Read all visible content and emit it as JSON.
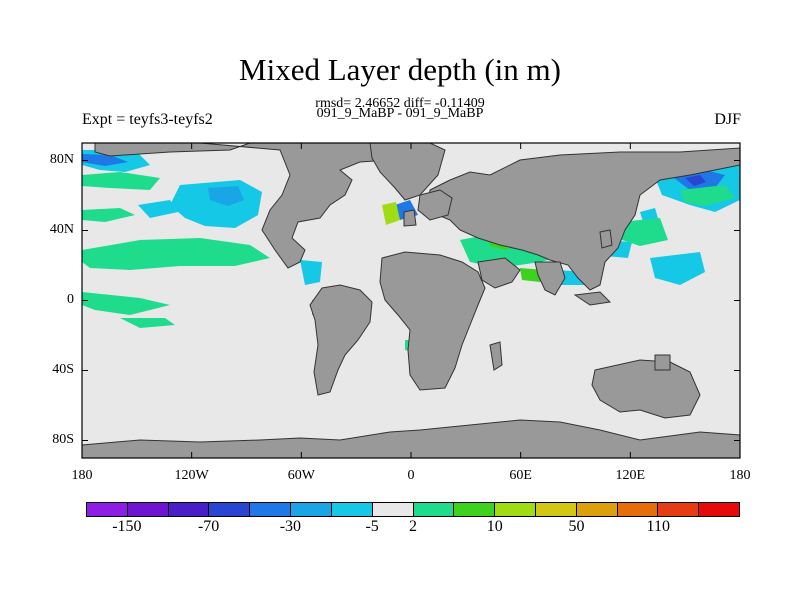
{
  "title": "Mixed Layer depth (in m)",
  "stats": "rmsd= 2.46652 diff= -0.11409",
  "subtitle": "091_9_MaBP - 091_9_MaBP",
  "left_label": "Expt = teyfs3-teyfs2",
  "right_label": "DJF",
  "lat_ticks": [
    {
      "label": "80N",
      "value": 80
    },
    {
      "label": "40N",
      "value": 40
    },
    {
      "label": "0",
      "value": 0
    },
    {
      "label": "40S",
      "value": -40
    },
    {
      "label": "80S",
      "value": -80
    }
  ],
  "lon_ticks": [
    {
      "label": "180",
      "value": -180
    },
    {
      "label": "120W",
      "value": -120
    },
    {
      "label": "60W",
      "value": -60
    },
    {
      "label": "0",
      "value": 0
    },
    {
      "label": "60E",
      "value": 60
    },
    {
      "label": "120E",
      "value": 120
    },
    {
      "label": "180",
      "value": 180
    }
  ],
  "colorbar": {
    "colors": [
      "#8c1ee6",
      "#6e14d2",
      "#4a1ec8",
      "#2846d2",
      "#1e78e6",
      "#19a5e6",
      "#14c8e6",
      "#e8e8e8",
      "#1edc8c",
      "#3cd21e",
      "#a0dc14",
      "#d2c814",
      "#dca00a",
      "#e66e0a",
      "#e63c14",
      "#e60a0a"
    ],
    "labels": [
      {
        "text": "-150",
        "index": 1
      },
      {
        "text": "-70",
        "index": 3
      },
      {
        "text": "-30",
        "index": 5
      },
      {
        "text": "-5",
        "index": 7
      },
      {
        "text": "2",
        "index": 8
      },
      {
        "text": "10",
        "index": 10
      },
      {
        "text": "50",
        "index": 12
      },
      {
        "text": "110",
        "index": 14
      }
    ]
  },
  "colors": {
    "ocean": "#e8e8e8",
    "land": "#999999"
  }
}
